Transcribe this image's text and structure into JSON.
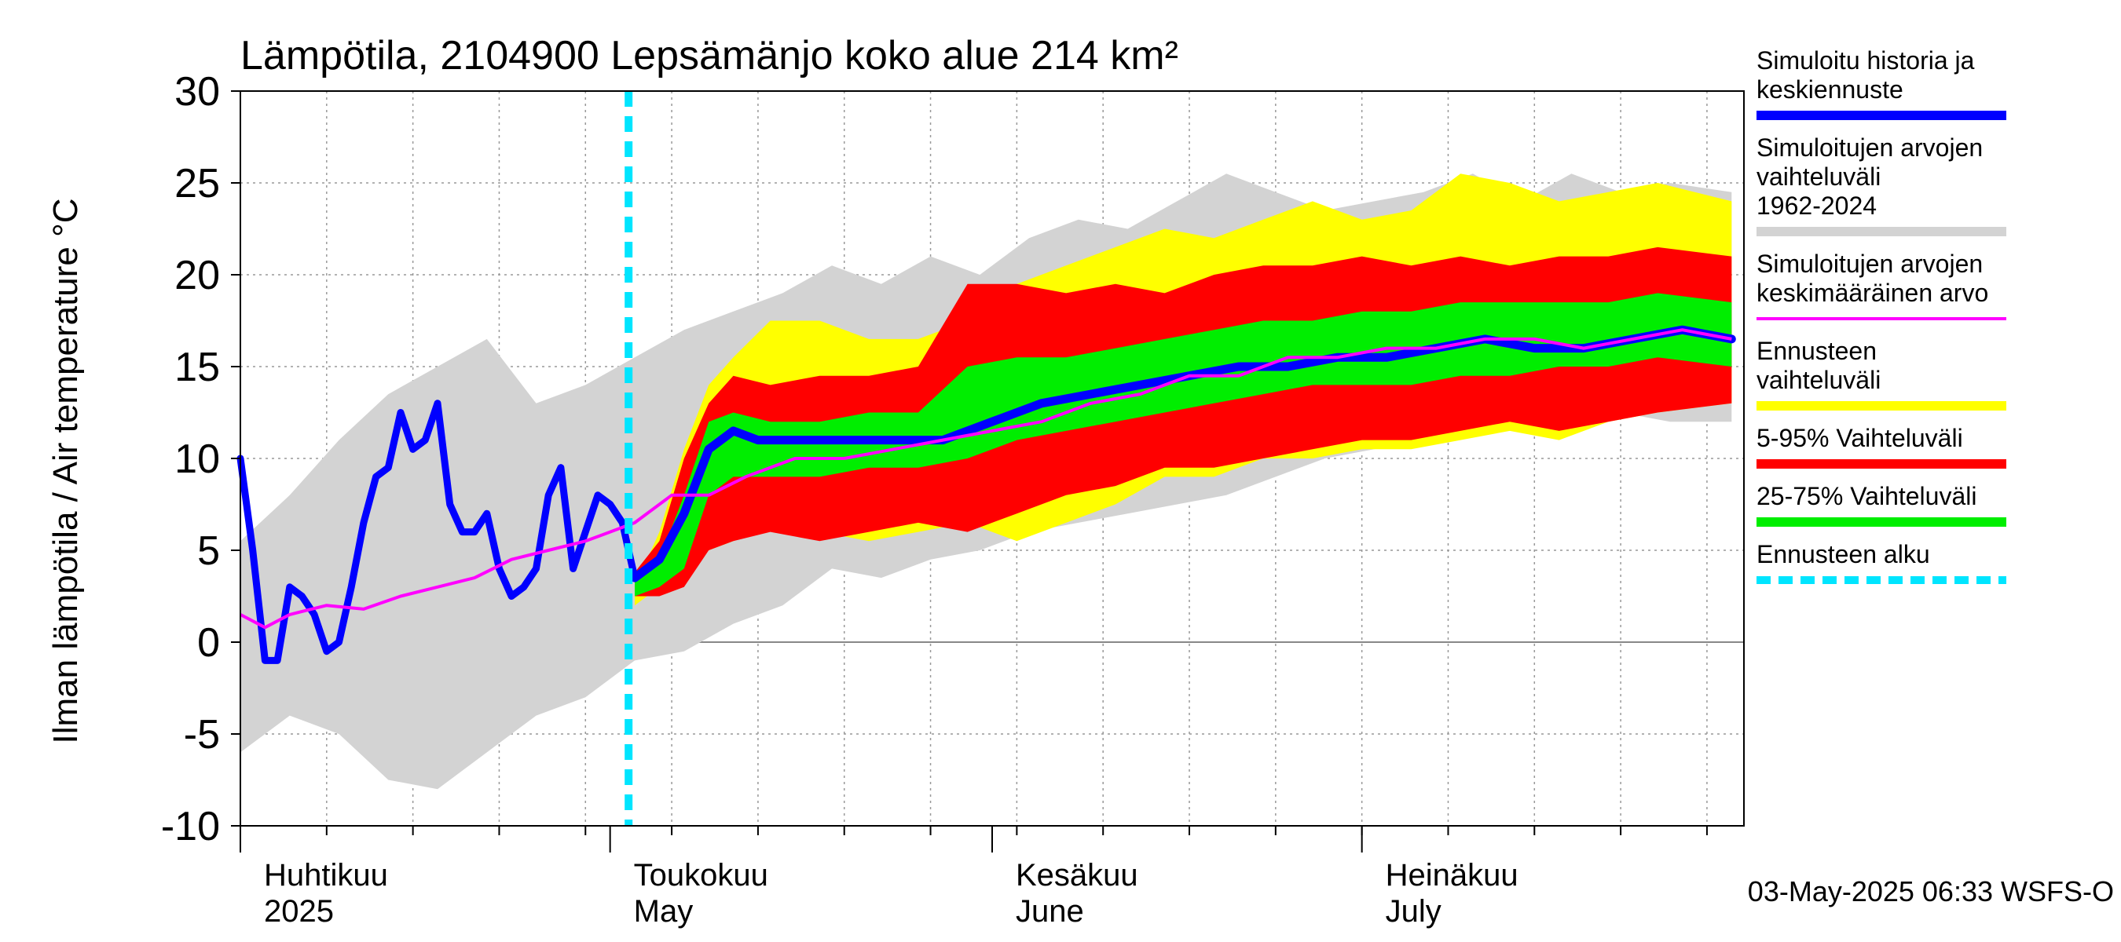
{
  "chart_data": {
    "type": "area",
    "title": "Lämpötila, 2104900 Lepsämänjo koko alue 214 km²",
    "ylabel": "Ilman lämpötila / Air temperature    °C",
    "ylim": [
      -10,
      30
    ],
    "yticks": [
      "-10",
      "-5",
      "0",
      "5",
      "10",
      "15",
      "20",
      "25",
      "30"
    ],
    "x_start": "2025-04-01",
    "x_end": "2025-07-31",
    "forecast_start": "2025-05-03",
    "month_labels": [
      {
        "date": "2025-04-01",
        "line1": "Huhtikuu",
        "line2": "2025"
      },
      {
        "date": "2025-05-01",
        "line1": "Toukokuu",
        "line2": "May"
      },
      {
        "date": "2025-06-01",
        "line1": "Kesäkuu",
        "line2": "June"
      },
      {
        "date": "2025-07-01",
        "line1": "Heinäkuu",
        "line2": "July"
      }
    ],
    "footer": "03-May-2025 06:33 WSFS-O",
    "colors": {
      "history_range": "#d3d3d3",
      "forecast_range": "#ffff00",
      "p5_95": "#ff0000",
      "p25_75": "#00ee00",
      "mean": "#ff00ff",
      "simulated": "#0000ff",
      "forecast_start": "#00e5ff"
    },
    "legend": [
      {
        "label": "Simuloitu historia ja keskiennuste",
        "color": "#0000ff",
        "style": "thick"
      },
      {
        "label": "Simuloitujen arvojen vaihteluväli 1962-2024",
        "color": "#d3d3d3",
        "style": "thick"
      },
      {
        "label": "Simuloitujen arvojen keskimääräinen arvo",
        "color": "#ff00ff",
        "style": "thin"
      },
      {
        "label": "Ennusteen vaihteluväli",
        "color": "#ffff00",
        "style": "thick"
      },
      {
        "label": "5-95% Vaihteluväli",
        "color": "#ff0000",
        "style": "thick"
      },
      {
        "label": "25-75% Vaihteluväli",
        "color": "#00ee00",
        "style": "thick"
      },
      {
        "label": "Ennusteen alku",
        "color": "#00e5ff",
        "style": "dashed"
      }
    ],
    "history_band": {
      "dates": [
        "2025-04-01",
        "2025-04-05",
        "2025-04-09",
        "2025-04-13",
        "2025-04-17",
        "2025-04-21",
        "2025-04-25",
        "2025-04-29",
        "2025-05-03",
        "2025-05-07",
        "2025-05-11",
        "2025-05-15",
        "2025-05-19",
        "2025-05-23",
        "2025-05-27",
        "2025-05-31",
        "2025-06-04",
        "2025-06-08",
        "2025-06-12",
        "2025-06-16",
        "2025-06-20",
        "2025-06-24",
        "2025-06-28",
        "2025-07-02",
        "2025-07-06",
        "2025-07-10",
        "2025-07-14",
        "2025-07-18",
        "2025-07-22",
        "2025-07-26",
        "2025-07-31"
      ],
      "upper": [
        5.5,
        8.0,
        11.0,
        13.5,
        15.0,
        16.5,
        13.0,
        14.0,
        15.5,
        17.0,
        18.0,
        19.0,
        20.5,
        19.5,
        21.0,
        20.0,
        22.0,
        23.0,
        22.5,
        24.0,
        25.5,
        24.5,
        23.5,
        24.0,
        24.5,
        25.5,
        24.0,
        25.5,
        24.5,
        25.0,
        24.5
      ],
      "lower": [
        -6.0,
        -4.0,
        -5.0,
        -7.5,
        -8.0,
        -6.0,
        -4.0,
        -3.0,
        -1.0,
        -0.5,
        1.0,
        2.0,
        4.0,
        3.5,
        4.5,
        5.0,
        6.0,
        6.5,
        7.0,
        7.5,
        8.0,
        9.0,
        10.0,
        10.5,
        11.0,
        11.5,
        12.0,
        12.0,
        12.5,
        12.0,
        12.0
      ]
    },
    "forecast_bands": {
      "dates": [
        "2025-05-03",
        "2025-05-05",
        "2025-05-07",
        "2025-05-09",
        "2025-05-11",
        "2025-05-14",
        "2025-05-18",
        "2025-05-22",
        "2025-05-26",
        "2025-05-30",
        "2025-06-03",
        "2025-06-07",
        "2025-06-11",
        "2025-06-15",
        "2025-06-19",
        "2025-06-23",
        "2025-06-27",
        "2025-07-01",
        "2025-07-05",
        "2025-07-09",
        "2025-07-13",
        "2025-07-17",
        "2025-07-21",
        "2025-07-25",
        "2025-07-31"
      ],
      "outer_upper": [
        3.0,
        6.0,
        10.5,
        14.0,
        15.5,
        17.5,
        17.5,
        16.5,
        16.5,
        17.5,
        19.5,
        20.5,
        21.5,
        22.5,
        22.0,
        23.0,
        24.0,
        23.0,
        23.5,
        25.5,
        25.0,
        24.0,
        24.5,
        25.0,
        24.0
      ],
      "outer_lower": [
        2.0,
        3.0,
        4.0,
        5.0,
        5.5,
        6.5,
        6.0,
        5.5,
        6.0,
        6.5,
        5.5,
        6.5,
        7.5,
        9.0,
        9.0,
        10.0,
        10.0,
        10.5,
        10.5,
        11.0,
        11.5,
        11.0,
        12.0,
        12.5,
        13.0
      ],
      "p95": [
        3.8,
        5.5,
        10.0,
        13.0,
        14.5,
        14.0,
        14.5,
        14.5,
        15.0,
        19.5,
        19.5,
        19.0,
        19.5,
        19.0,
        20.0,
        20.5,
        20.5,
        21.0,
        20.5,
        21.0,
        20.5,
        21.0,
        21.0,
        21.5,
        21.0
      ],
      "p75": [
        3.5,
        4.5,
        8.0,
        12.0,
        12.5,
        12.0,
        12.0,
        12.5,
        12.5,
        15.0,
        15.5,
        15.5,
        16.0,
        16.5,
        17.0,
        17.5,
        17.5,
        18.0,
        18.0,
        18.5,
        18.5,
        18.5,
        18.5,
        19.0,
        18.5
      ],
      "p25": [
        2.5,
        3.0,
        4.0,
        8.0,
        9.0,
        9.0,
        9.0,
        9.5,
        9.5,
        10.0,
        11.0,
        11.5,
        12.0,
        12.5,
        13.0,
        13.5,
        14.0,
        14.0,
        14.0,
        14.5,
        14.5,
        15.0,
        15.0,
        15.5,
        15.0
      ],
      "p5": [
        2.5,
        2.5,
        3.0,
        5.0,
        5.5,
        6.0,
        5.5,
        6.0,
        6.5,
        6.0,
        7.0,
        8.0,
        8.5,
        9.5,
        9.5,
        10.0,
        10.5,
        11.0,
        11.0,
        11.5,
        12.0,
        11.5,
        12.0,
        12.5,
        13.0
      ]
    },
    "mean": {
      "dates": [
        "2025-04-01",
        "2025-04-03",
        "2025-04-05",
        "2025-04-08",
        "2025-04-11",
        "2025-04-14",
        "2025-04-17",
        "2025-04-20",
        "2025-04-23",
        "2025-04-26",
        "2025-04-29",
        "2025-05-01",
        "2025-05-03",
        "2025-05-06",
        "2025-05-09",
        "2025-05-12",
        "2025-05-16",
        "2025-05-20",
        "2025-05-24",
        "2025-05-28",
        "2025-06-01",
        "2025-06-05",
        "2025-06-09",
        "2025-06-13",
        "2025-06-17",
        "2025-06-21",
        "2025-06-25",
        "2025-06-29",
        "2025-07-03",
        "2025-07-07",
        "2025-07-11",
        "2025-07-15",
        "2025-07-19",
        "2025-07-23",
        "2025-07-27",
        "2025-07-31"
      ],
      "values": [
        1.5,
        0.8,
        1.5,
        2.0,
        1.8,
        2.5,
        3.0,
        3.5,
        4.5,
        5.0,
        5.5,
        6.0,
        6.5,
        8.0,
        8.0,
        9.0,
        10.0,
        10.0,
        10.5,
        11.0,
        11.5,
        12.0,
        13.0,
        13.5,
        14.5,
        14.5,
        15.5,
        15.5,
        16.0,
        16.0,
        16.5,
        16.5,
        16.0,
        16.5,
        17.0,
        16.5
      ]
    },
    "simulated": {
      "dates": [
        "2025-04-01",
        "2025-04-02",
        "2025-04-03",
        "2025-04-04",
        "2025-04-05",
        "2025-04-06",
        "2025-04-07",
        "2025-04-08",
        "2025-04-09",
        "2025-04-10",
        "2025-04-11",
        "2025-04-12",
        "2025-04-13",
        "2025-04-14",
        "2025-04-15",
        "2025-04-16",
        "2025-04-17",
        "2025-04-18",
        "2025-04-19",
        "2025-04-20",
        "2025-04-21",
        "2025-04-22",
        "2025-04-23",
        "2025-04-24",
        "2025-04-25",
        "2025-04-26",
        "2025-04-27",
        "2025-04-28",
        "2025-04-29",
        "2025-04-30",
        "2025-05-01",
        "2025-05-02",
        "2025-05-03",
        "2025-05-05",
        "2025-05-07",
        "2025-05-09",
        "2025-05-11",
        "2025-05-13",
        "2025-05-15",
        "2025-05-17",
        "2025-05-20",
        "2025-05-24",
        "2025-05-28",
        "2025-06-01",
        "2025-06-05",
        "2025-06-09",
        "2025-06-13",
        "2025-06-17",
        "2025-06-21",
        "2025-06-25",
        "2025-06-29",
        "2025-07-03",
        "2025-07-07",
        "2025-07-11",
        "2025-07-15",
        "2025-07-19",
        "2025-07-23",
        "2025-07-27",
        "2025-07-31"
      ],
      "values": [
        10.0,
        5.0,
        -1.0,
        -1.0,
        3.0,
        2.5,
        1.5,
        -0.5,
        0.0,
        3.0,
        6.5,
        9.0,
        9.5,
        12.5,
        10.5,
        11.0,
        13.0,
        7.5,
        6.0,
        6.0,
        7.0,
        4.0,
        2.5,
        3.0,
        4.0,
        8.0,
        9.5,
        4.0,
        6.0,
        8.0,
        7.5,
        6.5,
        3.5,
        4.5,
        7.0,
        10.5,
        11.5,
        11.0,
        11.0,
        11.0,
        11.0,
        11.0,
        11.0,
        12.0,
        13.0,
        13.5,
        14.0,
        14.5,
        15.0,
        15.0,
        15.5,
        15.5,
        16.0,
        16.5,
        16.0,
        16.0,
        16.5,
        17.0,
        16.5
      ]
    }
  }
}
